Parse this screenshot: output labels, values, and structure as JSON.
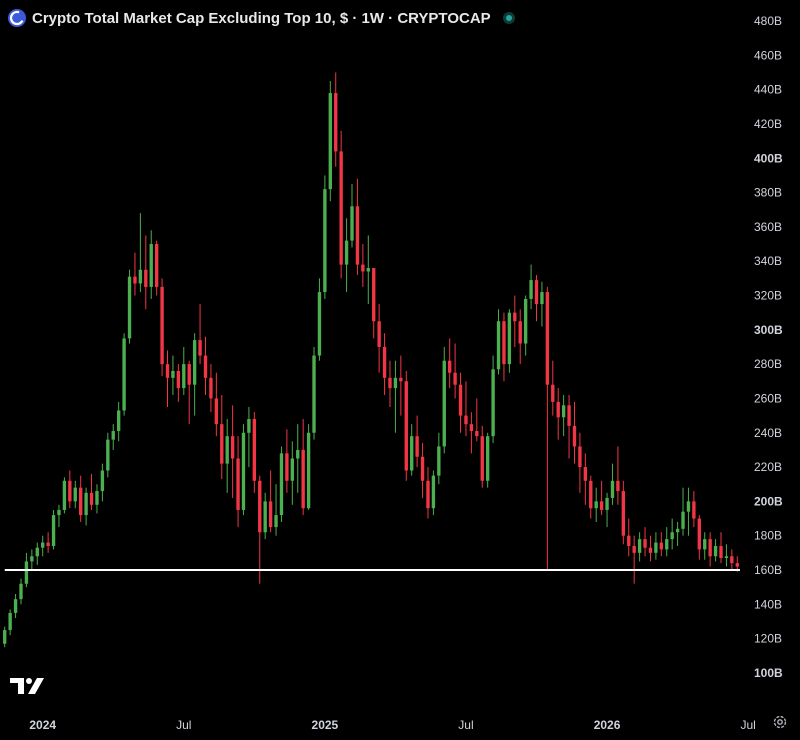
{
  "header": {
    "title": "Crypto Total Market Cap Excluding Top 10, $ · 1W · CRYPTOCAP",
    "symbol_icon": "cryptocap-logo-icon",
    "status_icon": "market-status-dot-icon"
  },
  "colors": {
    "background": "#000000",
    "up": "#4caf50",
    "down": "#f23645",
    "support_line": "#ffffff",
    "axis_text": "#d1d4dc"
  },
  "logo": {
    "icon": "tradingview-logo-icon"
  },
  "settings": {
    "icon": "settings-gear-icon"
  },
  "chart_data": {
    "type": "candlestick",
    "title": "Crypto Total Market Cap Excluding Top 10, $ · 1W · CRYPTOCAP",
    "unit": "B",
    "ylim": [
      95,
      490
    ],
    "y_ticks": [
      "480B",
      "460B",
      "440B",
      "420B",
      "400B",
      "380B",
      "360B",
      "340B",
      "320B",
      "300B",
      "280B",
      "260B",
      "240B",
      "220B",
      "200B",
      "180B",
      "160B",
      "140B",
      "120B",
      "100B"
    ],
    "y_tick_values": [
      480,
      460,
      440,
      420,
      400,
      380,
      360,
      340,
      320,
      300,
      280,
      260,
      240,
      220,
      200,
      180,
      160,
      140,
      120,
      100
    ],
    "x_labels": [
      {
        "label": "2024",
        "week": 7
      },
      {
        "label": "Jul",
        "week": 33
      },
      {
        "label": "2025",
        "week": 59
      },
      {
        "label": "Jul",
        "week": 85
      },
      {
        "label": "2026",
        "week": 111
      },
      {
        "label": "Jul",
        "week": 137
      }
    ],
    "grid": false,
    "support_line": {
      "value": 160,
      "from_week": 0
    },
    "candles": [
      [
        117,
        127,
        115,
        125
      ],
      [
        125,
        137,
        122,
        135
      ],
      [
        135,
        146,
        132,
        143
      ],
      [
        143,
        155,
        140,
        152
      ],
      [
        152,
        170,
        150,
        165
      ],
      [
        165,
        172,
        160,
        168
      ],
      [
        168,
        176,
        163,
        173
      ],
      [
        173,
        180,
        168,
        176
      ],
      [
        176,
        182,
        170,
        174
      ],
      [
        174,
        195,
        172,
        192
      ],
      [
        192,
        198,
        185,
        195
      ],
      [
        195,
        214,
        193,
        212
      ],
      [
        212,
        218,
        196,
        200
      ],
      [
        200,
        212,
        196,
        208
      ],
      [
        208,
        215,
        188,
        192
      ],
      [
        192,
        208,
        186,
        205
      ],
      [
        205,
        216,
        195,
        198
      ],
      [
        198,
        210,
        193,
        206
      ],
      [
        206,
        222,
        200,
        218
      ],
      [
        218,
        240,
        214,
        236
      ],
      [
        236,
        245,
        230,
        241
      ],
      [
        241,
        258,
        235,
        253
      ],
      [
        253,
        298,
        250,
        295
      ],
      [
        295,
        335,
        292,
        331
      ],
      [
        331,
        345,
        320,
        327
      ],
      [
        327,
        368,
        322,
        335
      ],
      [
        335,
        355,
        312,
        325
      ],
      [
        325,
        358,
        318,
        350
      ],
      [
        350,
        352,
        320,
        325
      ],
      [
        325,
        330,
        273,
        280
      ],
      [
        280,
        288,
        255,
        272
      ],
      [
        272,
        285,
        262,
        276
      ],
      [
        276,
        280,
        258,
        266
      ],
      [
        266,
        290,
        262,
        280
      ],
      [
        280,
        282,
        245,
        268
      ],
      [
        268,
        298,
        250,
        294
      ],
      [
        294,
        315,
        280,
        285
      ],
      [
        285,
        296,
        262,
        272
      ],
      [
        272,
        280,
        252,
        260
      ],
      [
        260,
        275,
        238,
        245
      ],
      [
        245,
        262,
        213,
        222
      ],
      [
        222,
        248,
        205,
        238
      ],
      [
        238,
        256,
        202,
        225
      ],
      [
        225,
        238,
        185,
        195
      ],
      [
        195,
        245,
        192,
        240
      ],
      [
        240,
        255,
        220,
        248
      ],
      [
        248,
        252,
        205,
        212
      ],
      [
        212,
        215,
        152,
        182
      ],
      [
        182,
        205,
        178,
        200
      ],
      [
        200,
        218,
        182,
        185
      ],
      [
        185,
        210,
        180,
        192
      ],
      [
        192,
        232,
        188,
        228
      ],
      [
        228,
        242,
        205,
        212
      ],
      [
        212,
        235,
        198,
        225
      ],
      [
        225,
        245,
        205,
        230
      ],
      [
        230,
        248,
        192,
        196
      ],
      [
        196,
        245,
        195,
        240
      ],
      [
        240,
        290,
        236,
        285
      ],
      [
        285,
        330,
        282,
        322
      ],
      [
        322,
        390,
        318,
        382
      ],
      [
        382,
        445,
        375,
        438
      ],
      [
        438,
        450,
        395,
        404
      ],
      [
        404,
        416,
        330,
        338
      ],
      [
        338,
        365,
        322,
        352
      ],
      [
        352,
        385,
        348,
        372
      ],
      [
        372,
        388,
        332,
        338
      ],
      [
        338,
        350,
        325,
        334
      ],
      [
        334,
        355,
        315,
        336
      ],
      [
        336,
        336,
        295,
        305
      ],
      [
        305,
        315,
        275,
        290
      ],
      [
        290,
        298,
        262,
        272
      ],
      [
        272,
        282,
        255,
        266
      ],
      [
        266,
        282,
        240,
        272
      ],
      [
        272,
        285,
        250,
        270
      ],
      [
        270,
        276,
        212,
        218
      ],
      [
        218,
        245,
        215,
        238
      ],
      [
        238,
        250,
        220,
        226
      ],
      [
        226,
        234,
        202,
        212
      ],
      [
        212,
        220,
        190,
        196
      ],
      [
        196,
        218,
        192,
        215
      ],
      [
        215,
        240,
        210,
        232
      ],
      [
        232,
        290,
        228,
        282
      ],
      [
        282,
        295,
        266,
        275
      ],
      [
        275,
        292,
        260,
        268
      ],
      [
        268,
        275,
        240,
        250
      ],
      [
        250,
        270,
        238,
        245
      ],
      [
        245,
        252,
        228,
        241
      ],
      [
        241,
        260,
        235,
        238
      ],
      [
        238,
        244,
        208,
        212
      ],
      [
        212,
        240,
        208,
        238
      ],
      [
        238,
        285,
        234,
        277
      ],
      [
        277,
        312,
        274,
        305
      ],
      [
        305,
        310,
        270,
        280
      ],
      [
        280,
        312,
        275,
        310
      ],
      [
        310,
        320,
        290,
        305
      ],
      [
        305,
        312,
        280,
        292
      ],
      [
        292,
        320,
        285,
        318
      ],
      [
        318,
        338,
        312,
        329
      ],
      [
        329,
        332,
        305,
        315
      ],
      [
        315,
        328,
        302,
        322
      ],
      [
        322,
        325,
        160,
        268
      ],
      [
        268,
        282,
        250,
        258
      ],
      [
        258,
        266,
        236,
        249
      ],
      [
        249,
        262,
        238,
        256
      ],
      [
        256,
        262,
        225,
        244
      ],
      [
        244,
        258,
        222,
        232
      ],
      [
        232,
        240,
        205,
        220
      ],
      [
        220,
        228,
        198,
        212
      ],
      [
        212,
        215,
        190,
        196
      ],
      [
        196,
        208,
        188,
        200
      ],
      [
        200,
        212,
        192,
        195
      ],
      [
        195,
        205,
        185,
        202
      ],
      [
        202,
        222,
        198,
        212
      ],
      [
        212,
        232,
        198,
        206
      ],
      [
        206,
        212,
        175,
        180
      ],
      [
        180,
        190,
        168,
        174
      ],
      [
        174,
        180,
        152,
        170
      ],
      [
        170,
        182,
        165,
        178
      ],
      [
        178,
        185,
        168,
        173
      ],
      [
        173,
        180,
        165,
        170
      ],
      [
        170,
        182,
        166,
        176
      ],
      [
        176,
        182,
        168,
        172
      ],
      [
        172,
        185,
        168,
        178
      ],
      [
        178,
        190,
        172,
        182
      ],
      [
        182,
        188,
        174,
        184
      ],
      [
        184,
        208,
        180,
        194
      ],
      [
        194,
        208,
        180,
        200
      ],
      [
        200,
        206,
        185,
        190
      ],
      [
        190,
        192,
        166,
        172
      ],
      [
        172,
        182,
        166,
        178
      ],
      [
        178,
        182,
        162,
        168
      ],
      [
        168,
        178,
        165,
        174
      ],
      [
        174,
        182,
        164,
        167
      ],
      [
        167,
        175,
        162,
        168
      ],
      [
        168,
        172,
        160,
        164
      ],
      [
        164,
        168,
        159,
        162
      ]
    ]
  }
}
